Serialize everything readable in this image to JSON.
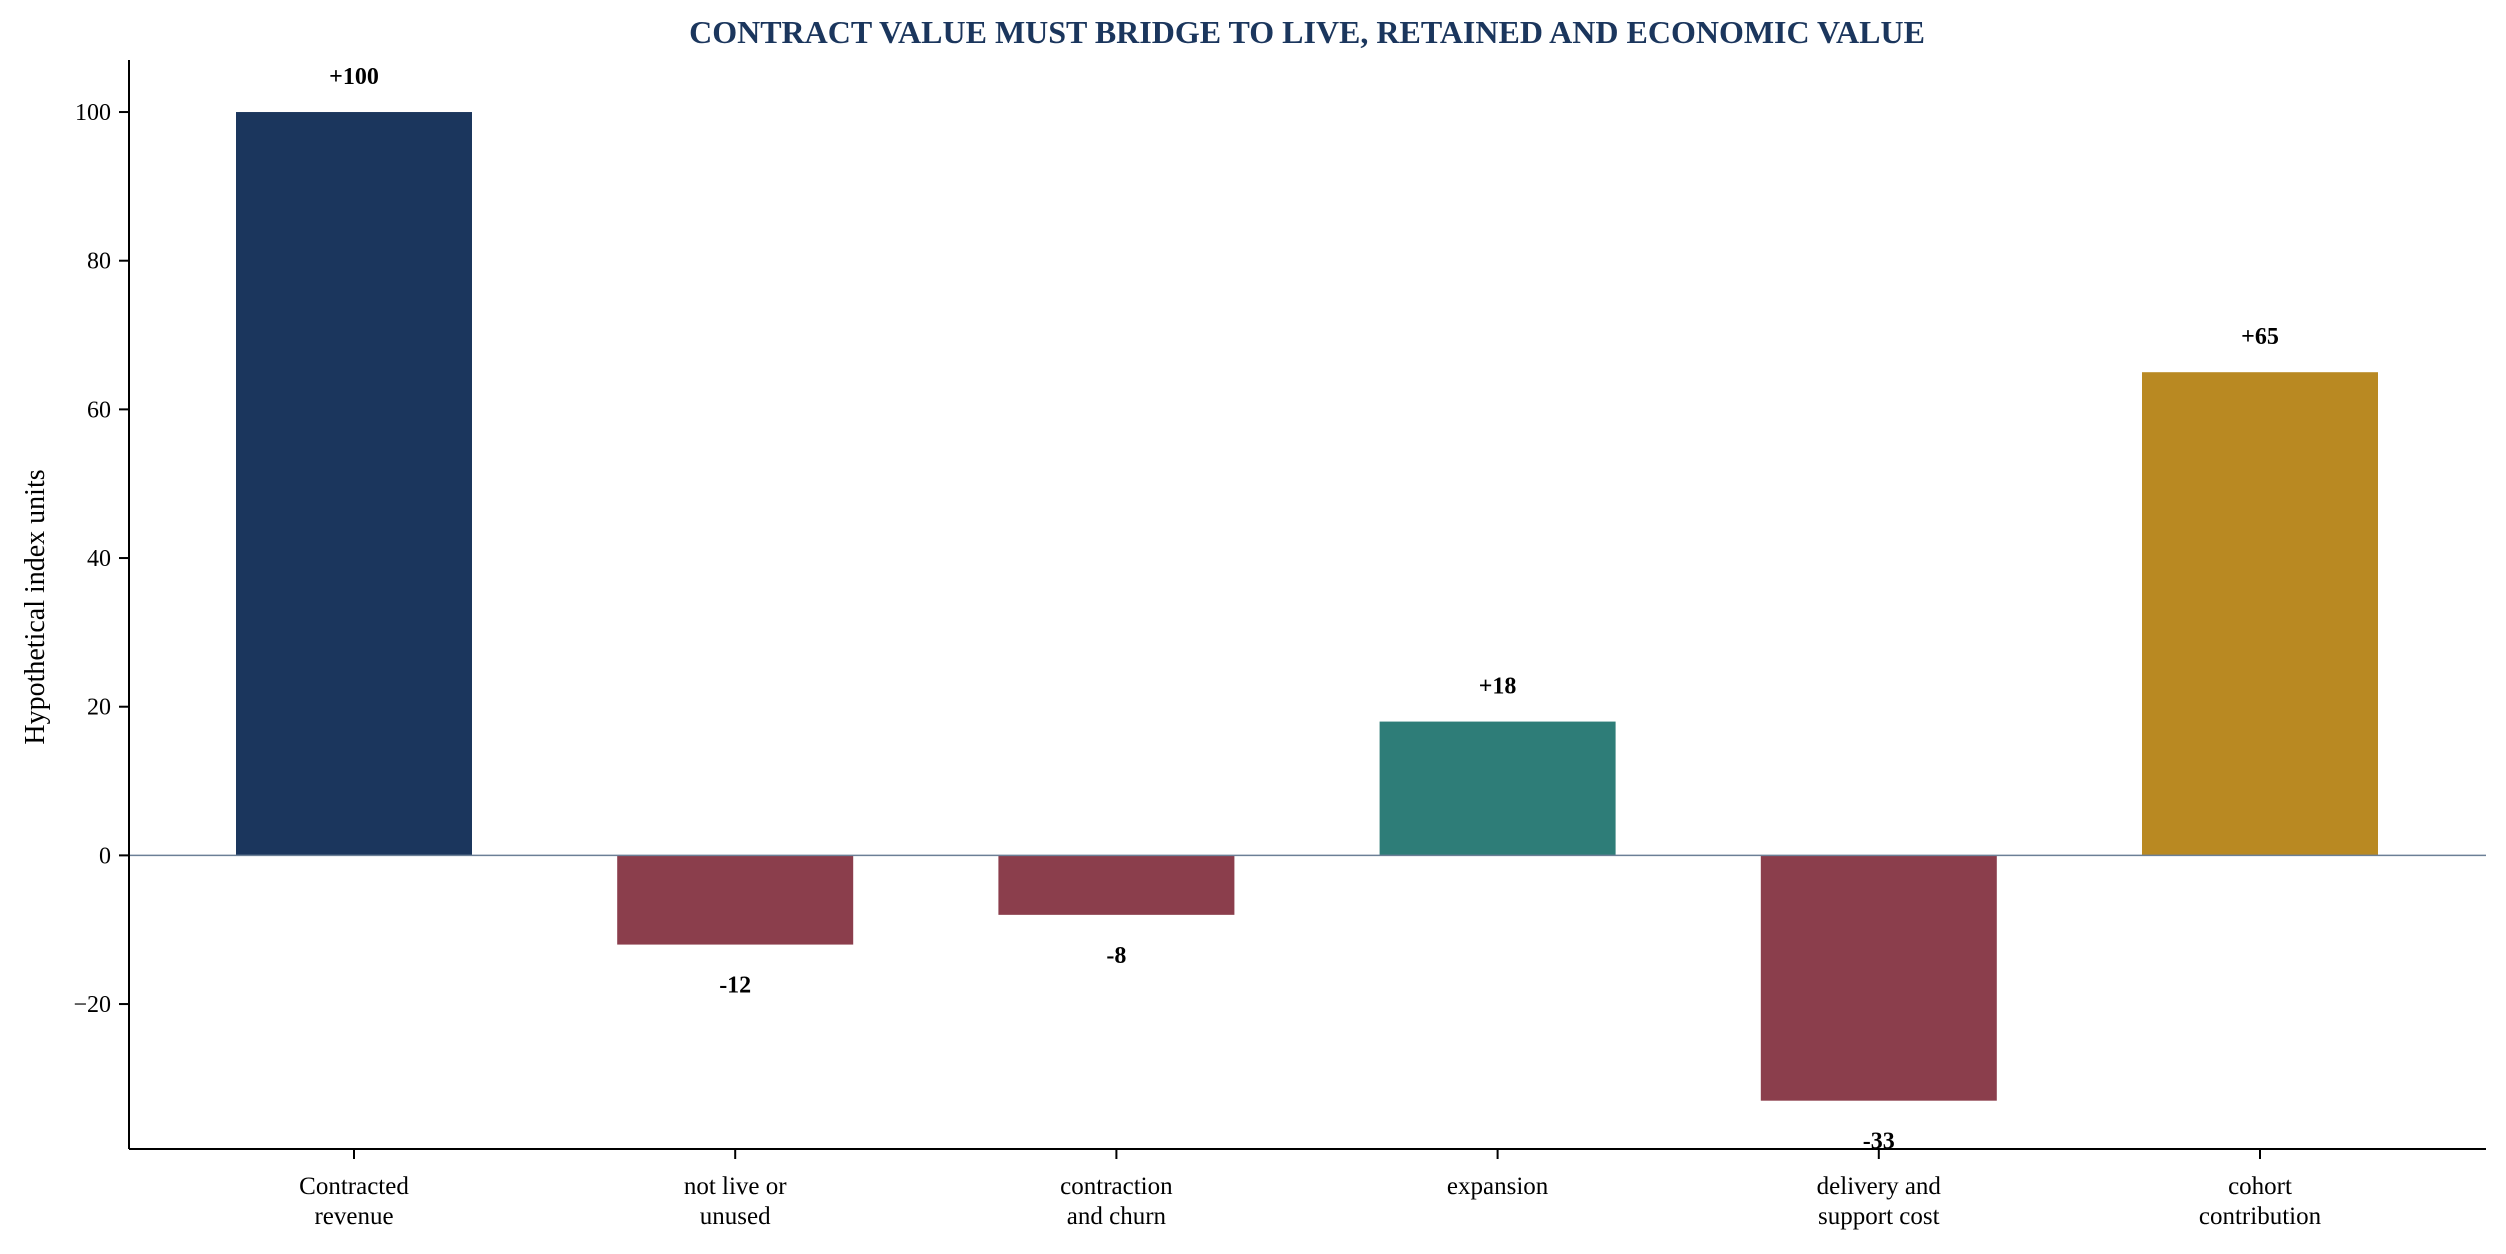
{
  "chart_data": {
    "type": "bar",
    "title": "CONTRACT VALUE MUST BRIDGE TO LIVE, RETAINED AND ECONOMIC VALUE",
    "xlabel": "",
    "ylabel": "Hypothetical index units",
    "ylim": [
      -39.5,
      107
    ],
    "yticks": [
      -20,
      0,
      20,
      40,
      60,
      80,
      100
    ],
    "ytick_labels": [
      "−20",
      "0",
      "20",
      "40",
      "60",
      "80",
      "100"
    ],
    "grid": false,
    "zero_line": true,
    "categories": [
      [
        "Contracted",
        "revenue"
      ],
      [
        "not live or",
        "unused"
      ],
      [
        "contraction",
        "and churn"
      ],
      [
        "expansion"
      ],
      [
        "delivery and",
        "support cost"
      ],
      [
        "cohort",
        "contribution"
      ]
    ],
    "values": [
      100,
      -12,
      -8,
      18,
      -33,
      65
    ],
    "value_labels": [
      "+100",
      "-12",
      "-8",
      "+18",
      "-33",
      "+65"
    ],
    "colors": [
      "#1b365d",
      "#8b3e4c",
      "#8b3e4c",
      "#2e7d78",
      "#8b3e4c",
      "#b98922"
    ],
    "title_color": "#1b365d",
    "zero_line_color": "#6b7f96"
  }
}
